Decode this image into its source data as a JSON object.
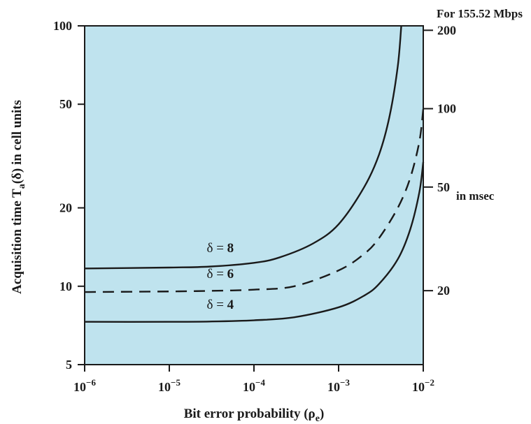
{
  "chart_data": {
    "type": "line",
    "title": "",
    "xlabel": "Bit error probability (ρe)",
    "ylabel": "Acquisition time Ta(δ) in cell units",
    "x_scale": "log",
    "y_scale": "log",
    "xlim": [
      1e-06,
      0.01
    ],
    "ylim": [
      5,
      100
    ],
    "x_ticks": [
      {
        "value": 1e-06,
        "base": "10",
        "exp": "−6"
      },
      {
        "value": 1e-05,
        "base": "10",
        "exp": "−5"
      },
      {
        "value": 0.0001,
        "base": "10",
        "exp": "−4"
      },
      {
        "value": 0.001,
        "base": "10",
        "exp": "−3"
      },
      {
        "value": 0.01,
        "base": "10",
        "exp": "−2"
      }
    ],
    "y_ticks": [
      {
        "value": 5,
        "label": "5"
      },
      {
        "value": 10,
        "label": "10"
      },
      {
        "value": 20,
        "label": "20"
      },
      {
        "value": 50,
        "label": "50"
      },
      {
        "value": 100,
        "label": "100"
      }
    ],
    "secondary_axis": {
      "header": "For 155.52 Mbps",
      "label": "in msec",
      "ticks": [
        {
          "value": 20,
          "label": "20"
        },
        {
          "value": 50,
          "label": "50"
        },
        {
          "value": 100,
          "label": "100"
        },
        {
          "value": 200,
          "label": "200"
        }
      ]
    },
    "grid": false,
    "background_color": "#bfe3ee",
    "line_color": "#1a1a1a",
    "series": [
      {
        "name": "δ = 8",
        "style": "solid",
        "x": [
          1e-06,
          1e-05,
          3e-05,
          0.0001,
          0.0002,
          0.0005,
          0.001,
          0.002,
          0.003,
          0.004,
          0.005,
          0.0055
        ],
        "y": [
          11.7,
          11.8,
          11.9,
          12.3,
          12.9,
          14.6,
          17.3,
          24,
          32,
          45,
          70,
          100
        ]
      },
      {
        "name": "δ = 6",
        "style": "dashed",
        "x": [
          1e-06,
          1e-05,
          3e-05,
          0.0001,
          0.0003,
          0.001,
          0.002,
          0.003,
          0.005,
          0.007,
          0.009,
          0.01
        ],
        "y": [
          9.5,
          9.55,
          9.6,
          9.7,
          10,
          11.5,
          13.3,
          15.3,
          20,
          26,
          36,
          48
        ]
      },
      {
        "name": "δ = 4",
        "style": "solid",
        "x": [
          1e-06,
          1e-05,
          3e-05,
          0.0001,
          0.0003,
          0.001,
          0.002,
          0.003,
          0.005,
          0.007,
          0.009,
          0.01
        ],
        "y": [
          7.3,
          7.3,
          7.32,
          7.4,
          7.6,
          8.3,
          9.2,
          10.2,
          12.7,
          16.5,
          23,
          30
        ]
      }
    ]
  }
}
